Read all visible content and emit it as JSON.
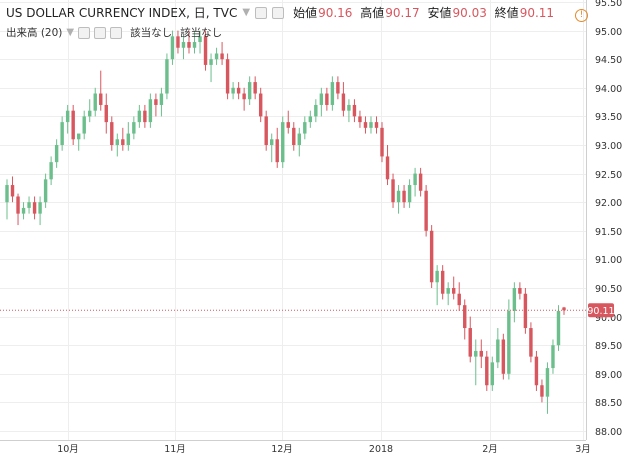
{
  "legend": {
    "title": "US DOLLAR CURRENCY INDEX, 日, TVC",
    "open_label": "始値",
    "open_value": "90.16",
    "high_label": "高値",
    "high_value": "90.17",
    "low_label": "安値",
    "low_value": "90.03",
    "close_label": "終値",
    "close_value": "90.11",
    "volume_label": "出来高 (20)",
    "na_1": "該当なし",
    "na_2": "該当なし"
  },
  "price_badge": "90.11",
  "colors": {
    "up": "#6cbf8c",
    "down": "#d8575f",
    "grid": "#eeeeee",
    "badge": "#d8575f"
  },
  "chart_data": {
    "type": "candlestick",
    "ylim": [
      87.8,
      95.5
    ],
    "y_ticks": [
      "95.50",
      "95.00",
      "94.50",
      "94.00",
      "93.50",
      "93.00",
      "92.50",
      "92.00",
      "91.50",
      "91.00",
      "90.50",
      "90.00",
      "89.50",
      "89.00",
      "88.50",
      "88.00"
    ],
    "x_ticks": [
      "10月",
      "11月",
      "12月",
      "2018",
      "2月",
      "3月"
    ],
    "last_price": 90.11,
    "ohlc": [
      [
        92.0,
        92.4,
        91.7,
        92.3
      ],
      [
        92.3,
        92.45,
        92.0,
        92.1
      ],
      [
        92.1,
        92.15,
        91.6,
        91.8
      ],
      [
        91.8,
        92.0,
        91.7,
        91.9
      ],
      [
        91.9,
        92.1,
        91.8,
        92.0
      ],
      [
        92.0,
        92.1,
        91.7,
        91.8
      ],
      [
        91.8,
        92.1,
        91.6,
        92.0
      ],
      [
        92.0,
        92.5,
        91.9,
        92.4
      ],
      [
        92.4,
        92.8,
        92.3,
        92.7
      ],
      [
        92.7,
        93.1,
        92.6,
        93.0
      ],
      [
        93.0,
        93.5,
        92.9,
        93.4
      ],
      [
        93.4,
        93.7,
        93.2,
        93.6
      ],
      [
        93.6,
        93.7,
        93.0,
        93.1
      ],
      [
        93.1,
        93.2,
        92.9,
        93.2
      ],
      [
        93.2,
        93.6,
        93.1,
        93.5
      ],
      [
        93.5,
        93.8,
        93.4,
        93.6
      ],
      [
        93.6,
        94.0,
        93.5,
        93.9
      ],
      [
        93.9,
        94.3,
        93.6,
        93.7
      ],
      [
        93.7,
        93.9,
        93.2,
        93.4
      ],
      [
        93.4,
        93.5,
        92.9,
        93.0
      ],
      [
        93.0,
        93.2,
        92.8,
        93.1
      ],
      [
        93.1,
        93.3,
        92.9,
        93.0
      ],
      [
        93.0,
        93.4,
        92.9,
        93.2
      ],
      [
        93.2,
        93.5,
        93.1,
        93.4
      ],
      [
        93.4,
        93.7,
        93.3,
        93.6
      ],
      [
        93.6,
        93.7,
        93.3,
        93.4
      ],
      [
        93.4,
        93.9,
        93.3,
        93.8
      ],
      [
        93.8,
        93.9,
        93.5,
        93.7
      ],
      [
        93.7,
        94.0,
        93.5,
        93.9
      ],
      [
        93.9,
        94.6,
        93.8,
        94.5
      ],
      [
        94.5,
        95.0,
        94.4,
        94.9
      ],
      [
        94.9,
        95.0,
        94.6,
        94.7
      ],
      [
        94.7,
        94.9,
        94.5,
        94.8
      ],
      [
        94.8,
        95.0,
        94.6,
        94.7
      ],
      [
        94.7,
        95.0,
        94.6,
        94.8
      ],
      [
        94.8,
        95.0,
        94.6,
        94.9
      ],
      [
        94.9,
        95.0,
        94.3,
        94.4
      ],
      [
        94.4,
        94.6,
        94.1,
        94.5
      ],
      [
        94.5,
        94.7,
        94.4,
        94.6
      ],
      [
        94.6,
        94.8,
        94.4,
        94.5
      ],
      [
        94.5,
        94.6,
        93.8,
        93.9
      ],
      [
        93.9,
        94.1,
        93.8,
        94.0
      ],
      [
        94.0,
        94.1,
        93.8,
        93.9
      ],
      [
        93.9,
        94.0,
        93.6,
        93.8
      ],
      [
        93.8,
        94.2,
        93.7,
        94.1
      ],
      [
        94.1,
        94.2,
        93.8,
        93.9
      ],
      [
        93.9,
        94.0,
        93.4,
        93.5
      ],
      [
        93.5,
        93.6,
        92.9,
        93.0
      ],
      [
        93.0,
        93.2,
        92.7,
        93.1
      ],
      [
        93.1,
        93.3,
        92.6,
        92.7
      ],
      [
        92.7,
        93.5,
        92.6,
        93.4
      ],
      [
        93.4,
        93.6,
        93.2,
        93.3
      ],
      [
        93.3,
        93.4,
        92.9,
        93.0
      ],
      [
        93.0,
        93.3,
        92.8,
        93.2
      ],
      [
        93.2,
        93.5,
        93.1,
        93.4
      ],
      [
        93.4,
        93.6,
        93.3,
        93.5
      ],
      [
        93.5,
        93.8,
        93.4,
        93.7
      ],
      [
        93.7,
        94.0,
        93.5,
        93.9
      ],
      [
        93.9,
        94.0,
        93.6,
        93.7
      ],
      [
        93.7,
        94.2,
        93.6,
        94.1
      ],
      [
        94.1,
        94.2,
        93.8,
        93.9
      ],
      [
        93.9,
        94.1,
        93.5,
        93.6
      ],
      [
        93.6,
        93.8,
        93.4,
        93.7
      ],
      [
        93.7,
        93.8,
        93.4,
        93.5
      ],
      [
        93.5,
        93.6,
        93.3,
        93.4
      ],
      [
        93.4,
        93.5,
        93.2,
        93.3
      ],
      [
        93.3,
        93.5,
        93.2,
        93.4
      ],
      [
        93.4,
        93.5,
        93.2,
        93.3
      ],
      [
        93.3,
        93.4,
        92.7,
        92.8
      ],
      [
        92.8,
        93.0,
        92.3,
        92.4
      ],
      [
        92.4,
        92.5,
        91.9,
        92.0
      ],
      [
        92.0,
        92.3,
        91.8,
        92.2
      ],
      [
        92.2,
        92.3,
        91.9,
        92.0
      ],
      [
        92.0,
        92.4,
        91.9,
        92.3
      ],
      [
        92.3,
        92.6,
        92.1,
        92.5
      ],
      [
        92.5,
        92.6,
        92.1,
        92.2
      ],
      [
        92.2,
        92.3,
        91.4,
        91.5
      ],
      [
        91.5,
        91.6,
        90.5,
        90.6
      ],
      [
        90.6,
        90.9,
        90.2,
        90.8
      ],
      [
        90.8,
        90.9,
        90.3,
        90.4
      ],
      [
        90.4,
        90.6,
        90.2,
        90.5
      ],
      [
        90.5,
        90.7,
        90.3,
        90.4
      ],
      [
        90.4,
        90.6,
        90.1,
        90.2
      ],
      [
        90.2,
        90.3,
        89.6,
        89.8
      ],
      [
        89.8,
        90.0,
        89.2,
        89.3
      ],
      [
        89.3,
        89.6,
        88.8,
        89.4
      ],
      [
        89.4,
        89.6,
        89.1,
        89.3
      ],
      [
        89.3,
        89.4,
        88.7,
        88.8
      ],
      [
        88.8,
        89.3,
        88.7,
        89.2
      ],
      [
        89.2,
        89.8,
        89.1,
        89.6
      ],
      [
        89.6,
        89.7,
        88.9,
        89.0
      ],
      [
        89.0,
        90.3,
        88.9,
        90.1
      ],
      [
        90.1,
        90.6,
        89.9,
        90.5
      ],
      [
        90.5,
        90.6,
        90.3,
        90.4
      ],
      [
        90.4,
        90.5,
        89.7,
        89.8
      ],
      [
        89.8,
        89.9,
        89.2,
        89.3
      ],
      [
        89.3,
        89.4,
        88.7,
        88.8
      ],
      [
        88.8,
        88.9,
        88.5,
        88.6
      ],
      [
        88.6,
        89.2,
        88.3,
        89.1
      ],
      [
        89.1,
        89.6,
        89.0,
        89.5
      ],
      [
        89.5,
        90.2,
        89.4,
        90.1
      ],
      [
        90.16,
        90.17,
        90.03,
        90.11
      ]
    ]
  }
}
